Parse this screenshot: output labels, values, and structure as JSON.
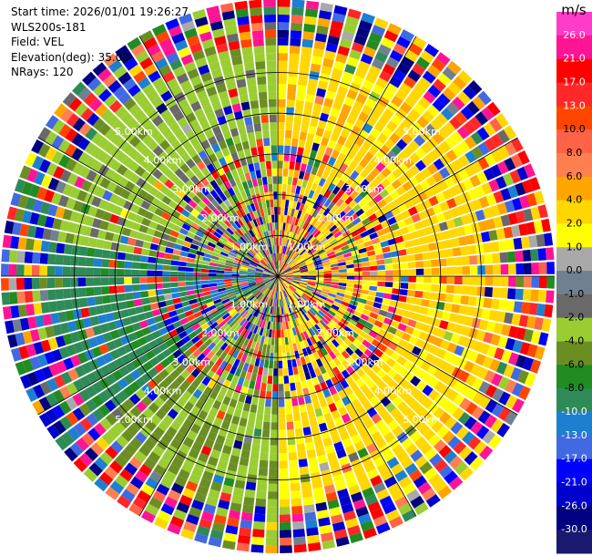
{
  "info": {
    "start_time": "Start time: 2026/01/01 19:26:27",
    "instrument": "WLS200s-181",
    "field": "Field: VEL",
    "elevation": "Elevation(deg): 35.00",
    "nrays": "NRays: 120"
  },
  "colorbar": {
    "unit": "m/s",
    "ticks": [
      "26.0",
      "21.0",
      "17.0",
      "13.0",
      "10.0",
      "8.0",
      "6.0",
      "4.0",
      "2.0",
      "1.0",
      "0.0",
      "-1.0",
      "-2.0",
      "-4.0",
      "-6.0",
      "-8.0",
      "-10.0",
      "-13.0",
      "-17.0",
      "-21.0",
      "-26.0",
      "-30.0"
    ],
    "colors": [
      "#ff3cc8",
      "#ff1493",
      "#ff0000",
      "#ff2828",
      "#ff4500",
      "#ff6347",
      "#ff7f50",
      "#ffa500",
      "#ffd700",
      "#ffff00",
      "#a9a9a9",
      "#708090",
      "#696969",
      "#9acd32",
      "#6b8e23",
      "#228b22",
      "#2e8b57",
      "#1e7fd0",
      "#4169e1",
      "#0000ff",
      "#0000cd",
      "#000080",
      "#191970"
    ]
  },
  "chart_data": {
    "type": "heatmap",
    "field": "VEL",
    "units": "m/s",
    "elevation_deg": 35.0,
    "nrays": 120,
    "range_labels_km": [
      "1.00km",
      "2.00km",
      "3.00km",
      "4.00km",
      "5.00km"
    ],
    "range_rings_km": [
      1,
      2,
      3,
      4,
      5
    ],
    "max_range_km": 6.8,
    "sectors": [
      {
        "azimuth_from": 0,
        "azimuth_to": 120,
        "dominant_velocity": 3.0,
        "label": "yellow/orange"
      },
      {
        "azimuth_from": 120,
        "azimuth_to": 180,
        "dominant_velocity": 2.5,
        "label": "yellow"
      },
      {
        "azimuth_from": 180,
        "azimuth_to": 230,
        "dominant_velocity": -4.0,
        "label": "green"
      },
      {
        "azimuth_from": 230,
        "azimuth_to": 280,
        "dominant_velocity": -9.0,
        "label": "blue"
      },
      {
        "azimuth_from": 280,
        "azimuth_to": 360,
        "dominant_velocity": -3.0,
        "label": "olive/green"
      }
    ],
    "grid": true
  }
}
